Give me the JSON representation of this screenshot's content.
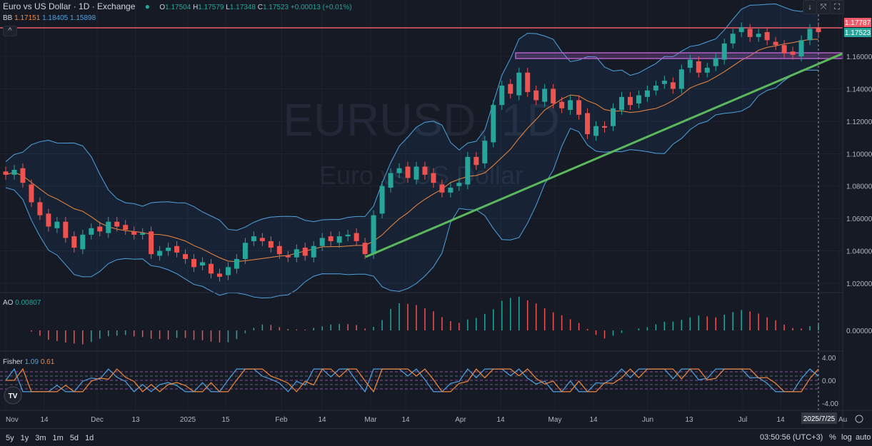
{
  "header": {
    "title": "Euro vs US Dollar · 1D · Exchange",
    "o_label": "O",
    "o": "1.17504",
    "h_label": "H",
    "h": "1.17579",
    "l_label": "L",
    "l": "1.17348",
    "c_label": "C",
    "c": "1.17523",
    "change": "+0.00013 (+0.01%)"
  },
  "bb": {
    "label": "BB",
    "basis": "1.17151",
    "upper": "1.18405",
    "lower": "1.15898"
  },
  "ao": {
    "label": "AO",
    "value": "0.00807"
  },
  "fisher": {
    "label": "Fisher",
    "v1": "1.09",
    "v2": "0.61"
  },
  "watermark": {
    "symbol": "EURUSD, 1D",
    "name": "Euro vs US Dollar"
  },
  "price_labels": {
    "resistance": "1.17787",
    "last": "1.17523"
  },
  "buttons": {
    "down": "↓",
    "collapse": "⤧",
    "fullscreen": "⛶",
    "up": "^"
  },
  "cursor_date": "2025/7/25",
  "bottom": {
    "ranges": [
      "5y",
      "1y",
      "3m",
      "1m",
      "5d",
      "1d"
    ],
    "clock": "03:50:56 (UTC+3)",
    "percent": "%",
    "log": "log",
    "auto": "auto"
  },
  "colors": {
    "up": "#26a69a",
    "down": "#ef5350",
    "bb_basis": "#f0883e",
    "bb_band": "#4fa3e0",
    "trendline": "#5cb85c",
    "zone": "#b45fc8",
    "resistance": "#f05a6a"
  },
  "chart_data": {
    "type": "candlestick",
    "symbol": "EURUSD",
    "interval": "1D",
    "ylim": [
      1.01,
      1.185
    ],
    "y_ticks": [
      "1.02000",
      "1.04000",
      "1.06000",
      "1.08000",
      "1.10000",
      "1.12000",
      "1.14000",
      "1.16000"
    ],
    "x_ticks": [
      "Nov",
      "14",
      "Dec",
      "13",
      "2025",
      "15",
      "Feb",
      "14",
      "Mar",
      "14",
      "Apr",
      "14",
      "May",
      "14",
      "Jun",
      "13",
      "Jul",
      "14",
      "Au"
    ],
    "closes": [
      1.087,
      1.09,
      1.082,
      1.07,
      1.062,
      1.055,
      1.058,
      1.048,
      1.042,
      1.05,
      1.054,
      1.052,
      1.058,
      1.055,
      1.053,
      1.05,
      1.051,
      1.038,
      1.04,
      1.042,
      1.039,
      1.035,
      1.03,
      1.033,
      1.026,
      1.024,
      1.03,
      1.035,
      1.045,
      1.049,
      1.046,
      1.042,
      1.038,
      1.036,
      1.041,
      1.037,
      1.043,
      1.048,
      1.046,
      1.049,
      1.05,
      1.046,
      1.038,
      1.062,
      1.08,
      1.088,
      1.091,
      1.085,
      1.092,
      1.087,
      1.082,
      1.076,
      1.079,
      1.082,
      1.098,
      1.093,
      1.108,
      1.13,
      1.142,
      1.137,
      1.15,
      1.138,
      1.133,
      1.14,
      1.131,
      1.128,
      1.133,
      1.124,
      1.112,
      1.117,
      1.116,
      1.128,
      1.135,
      1.13,
      1.136,
      1.139,
      1.142,
      1.145,
      1.14,
      1.152,
      1.158,
      1.15,
      1.153,
      1.159,
      1.168,
      1.174,
      1.178,
      1.172,
      1.174,
      1.17,
      1.167,
      1.162,
      1.161,
      1.17,
      1.177,
      1.175
    ],
    "resistance_level": 1.17787,
    "support_zone": [
      1.158,
      1.162
    ],
    "ao_ticks": [
      "0.00000"
    ],
    "fisher_ticks": [
      "4.00",
      "0.00",
      "-4.00"
    ]
  }
}
